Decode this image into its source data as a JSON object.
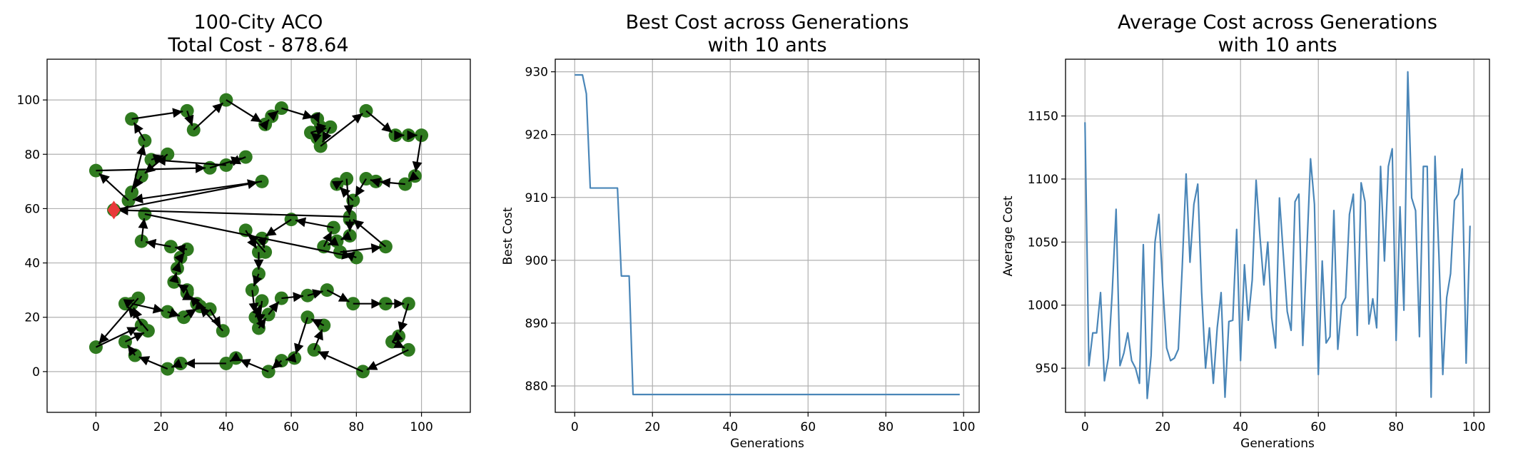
{
  "colors": {
    "city": "#2f7a1f",
    "start": "#e8393a",
    "route": "#000000",
    "line": "#4a86b8",
    "grid": "#b0b0b0"
  },
  "chart_data": [
    {
      "type": "scatter",
      "title_line1": "100-City ACO",
      "title_line2": "Total Cost - 878.64",
      "xlabel": "",
      "ylabel": "",
      "xlim": [
        -15,
        115
      ],
      "ylim": [
        -15,
        115
      ],
      "xticks": [
        0,
        20,
        40,
        60,
        80,
        100
      ],
      "yticks": [
        0,
        20,
        40,
        60,
        80,
        100
      ],
      "grid": true,
      "start_city": [
        5.5,
        59.5
      ],
      "route": [
        [
          5.5,
          59.5
        ],
        [
          51,
          70
        ],
        [
          10,
          63
        ],
        [
          0,
          74
        ],
        [
          35,
          75
        ],
        [
          46,
          79
        ],
        [
          40,
          76
        ],
        [
          17,
          78
        ],
        [
          22,
          80
        ],
        [
          14,
          72
        ],
        [
          11,
          66
        ],
        [
          15,
          85
        ],
        [
          11,
          93
        ],
        [
          28,
          96
        ],
        [
          30,
          89
        ],
        [
          40,
          100
        ],
        [
          52,
          91
        ],
        [
          54,
          94
        ],
        [
          57,
          97
        ],
        [
          68,
          93
        ],
        [
          69,
          90
        ],
        [
          68,
          86
        ],
        [
          66,
          88
        ],
        [
          72,
          90
        ],
        [
          69,
          83
        ],
        [
          83,
          96
        ],
        [
          92,
          87
        ],
        [
          96,
          87
        ],
        [
          100,
          87
        ],
        [
          98,
          72
        ],
        [
          95,
          69
        ],
        [
          86,
          70
        ],
        [
          83,
          71
        ],
        [
          79,
          63
        ],
        [
          74,
          69
        ],
        [
          77,
          71
        ],
        [
          78,
          56
        ],
        [
          78,
          50
        ],
        [
          74,
          48
        ],
        [
          70,
          46
        ],
        [
          73,
          53
        ],
        [
          60,
          56
        ],
        [
          51,
          49
        ],
        [
          52,
          44
        ],
        [
          46,
          52
        ],
        [
          50,
          44
        ],
        [
          50,
          36
        ],
        [
          48,
          30
        ],
        [
          49,
          20
        ],
        [
          51,
          26
        ],
        [
          50,
          16
        ],
        [
          53,
          21
        ],
        [
          57,
          27
        ],
        [
          65,
          28
        ],
        [
          71,
          30
        ],
        [
          79,
          25
        ],
        [
          89,
          25
        ],
        [
          96,
          25
        ],
        [
          93,
          13
        ],
        [
          91,
          11
        ],
        [
          96,
          8
        ],
        [
          82,
          0
        ],
        [
          67,
          8
        ],
        [
          70,
          17
        ],
        [
          65,
          20
        ],
        [
          61,
          5
        ],
        [
          57,
          4
        ],
        [
          53,
          0
        ],
        [
          43,
          5
        ],
        [
          40,
          3
        ],
        [
          26,
          3
        ],
        [
          22,
          1
        ],
        [
          12,
          6
        ],
        [
          9,
          11
        ],
        [
          16,
          15
        ],
        [
          9,
          25
        ],
        [
          13,
          27
        ],
        [
          0,
          9
        ],
        [
          14,
          17
        ],
        [
          11,
          25
        ],
        [
          22,
          22
        ],
        [
          27,
          20
        ],
        [
          32,
          24
        ],
        [
          35,
          23
        ],
        [
          39,
          15
        ],
        [
          31,
          25
        ],
        [
          28,
          29
        ],
        [
          28,
          30
        ],
        [
          24,
          33
        ],
        [
          25,
          38
        ],
        [
          26,
          42
        ],
        [
          28,
          45
        ],
        [
          23,
          46
        ],
        [
          14,
          48
        ],
        [
          15,
          58
        ],
        [
          80,
          42
        ],
        [
          75,
          44
        ],
        [
          89,
          46
        ],
        [
          78,
          57
        ],
        [
          5.5,
          59.5
        ]
      ]
    },
    {
      "type": "line",
      "title_line1": "Best Cost across Generations",
      "title_line2": "with 10 ants",
      "xlabel": "Generations",
      "ylabel": "Best Cost",
      "xlim": [
        -5,
        104
      ],
      "ylim": [
        875.8,
        932
      ],
      "xticks": [
        0,
        20,
        40,
        60,
        80,
        100
      ],
      "yticks": [
        880,
        890,
        900,
        910,
        920,
        930
      ],
      "grid": true,
      "x": [
        0,
        1,
        2,
        3,
        4,
        5,
        6,
        7,
        8,
        9,
        10,
        11,
        12,
        13,
        14,
        15,
        20,
        30,
        40,
        50,
        60,
        70,
        80,
        90,
        99
      ],
      "y": [
        929.5,
        929.5,
        929.5,
        926.5,
        911.5,
        911.5,
        911.5,
        911.5,
        911.5,
        911.5,
        911.5,
        911.5,
        897.5,
        897.5,
        897.5,
        878.64,
        878.64,
        878.64,
        878.64,
        878.64,
        878.64,
        878.64,
        878.64,
        878.64,
        878.64
      ]
    },
    {
      "type": "line",
      "title_line1": "Average Cost across Generations",
      "title_line2": "with 10 ants",
      "xlabel": "Generations",
      "ylabel": "Average Cost",
      "xlim": [
        -5,
        104
      ],
      "ylim": [
        915,
        1195
      ],
      "xticks": [
        0,
        20,
        40,
        60,
        80,
        100
      ],
      "yticks": [
        950,
        1000,
        1050,
        1100,
        1150
      ],
      "grid": true,
      "x": [
        0,
        1,
        2,
        3,
        4,
        5,
        6,
        7,
        8,
        9,
        10,
        11,
        12,
        13,
        14,
        15,
        16,
        17,
        18,
        19,
        20,
        21,
        22,
        23,
        24,
        25,
        26,
        27,
        28,
        29,
        30,
        31,
        32,
        33,
        34,
        35,
        36,
        37,
        38,
        39,
        40,
        41,
        42,
        43,
        44,
        45,
        46,
        47,
        48,
        49,
        50,
        51,
        52,
        53,
        54,
        55,
        56,
        57,
        58,
        59,
        60,
        61,
        62,
        63,
        64,
        65,
        66,
        67,
        68,
        69,
        70,
        71,
        72,
        73,
        74,
        75,
        76,
        77,
        78,
        79,
        80,
        81,
        82,
        83,
        84,
        85,
        86,
        87,
        88,
        89,
        90,
        91,
        92,
        93,
        94,
        95,
        96,
        97,
        98,
        99
      ],
      "y": [
        1145,
        952,
        978,
        978,
        1010,
        940,
        958,
        1010,
        1076,
        952,
        962,
        978,
        956,
        950,
        938,
        1048,
        926,
        960,
        1050,
        1072,
        1015,
        966,
        956,
        958,
        965,
        1030,
        1104,
        1034,
        1080,
        1096,
        1010,
        950,
        982,
        938,
        982,
        1010,
        927,
        987,
        988,
        1060,
        956,
        1032,
        988,
        1020,
        1099,
        1054,
        1016,
        1050,
        990,
        966,
        1085,
        1040,
        995,
        980,
        1082,
        1088,
        968,
        1040,
        1116,
        1080,
        945,
        1035,
        970,
        975,
        1075,
        965,
        1000,
        1006,
        1072,
        1088,
        976,
        1097,
        1082,
        985,
        1005,
        982,
        1110,
        1035,
        1110,
        1124,
        972,
        1078,
        996,
        1185,
        1085,
        1075,
        975,
        1110,
        1110,
        927,
        1118,
        1040,
        945,
        1006,
        1025,
        1083,
        1088,
        1108,
        954,
        1063
      ]
    }
  ]
}
